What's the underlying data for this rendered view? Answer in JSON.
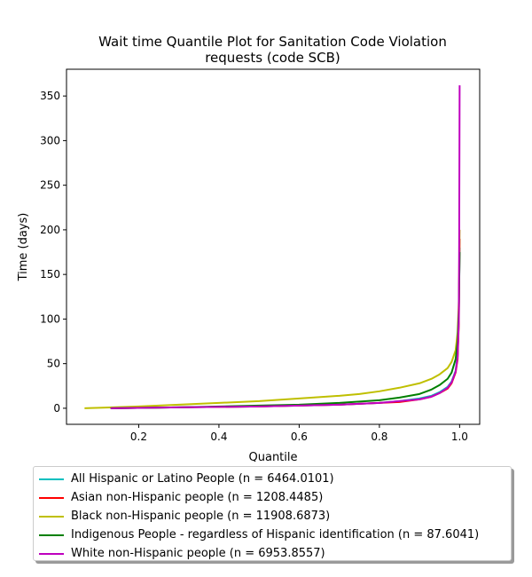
{
  "chart_data": {
    "type": "line",
    "title_lines": [
      "Wait time Quantile Plot for Sanitation Code Violation",
      "requests (code SCB)"
    ],
    "xlabel": "Quantile",
    "ylabel": "Time (days)",
    "xlim": [
      0.02,
      1.05
    ],
    "ylim": [
      -18,
      380
    ],
    "xticks": [
      0.2,
      0.4,
      0.6,
      0.8,
      1.0
    ],
    "xtick_labels": [
      "0.2",
      "0.4",
      "0.6",
      "0.8",
      "1.0"
    ],
    "yticks": [
      0,
      50,
      100,
      150,
      200,
      250,
      300,
      350
    ],
    "ytick_labels": [
      "0",
      "50",
      "100",
      "150",
      "200",
      "250",
      "300",
      "350"
    ],
    "grid": false,
    "legend_position": "below",
    "series": [
      {
        "name": "All Hispanic or Latino People (n = 6464.0101)",
        "color": "#00bfbf",
        "points": [
          [
            0.13,
            0
          ],
          [
            0.3,
            1
          ],
          [
            0.5,
            2
          ],
          [
            0.6,
            3
          ],
          [
            0.7,
            4
          ],
          [
            0.8,
            6
          ],
          [
            0.85,
            8
          ],
          [
            0.9,
            11
          ],
          [
            0.93,
            14
          ],
          [
            0.95,
            18
          ],
          [
            0.97,
            24
          ],
          [
            0.98,
            30
          ],
          [
            0.99,
            42
          ],
          [
            0.995,
            60
          ],
          [
            0.998,
            100
          ],
          [
            1.0,
            180
          ]
        ]
      },
      {
        "name": "Asian non-Hispanic people (n = 1208.4485)",
        "color": "#ff0000",
        "points": [
          [
            0.13,
            0
          ],
          [
            0.3,
            1
          ],
          [
            0.5,
            2
          ],
          [
            0.6,
            3
          ],
          [
            0.7,
            4
          ],
          [
            0.8,
            6
          ],
          [
            0.85,
            7
          ],
          [
            0.9,
            10
          ],
          [
            0.93,
            13
          ],
          [
            0.95,
            17
          ],
          [
            0.97,
            22
          ],
          [
            0.98,
            28
          ],
          [
            0.99,
            40
          ],
          [
            0.995,
            55
          ],
          [
            0.998,
            95
          ],
          [
            1.0,
            190
          ]
        ]
      },
      {
        "name": "Black non-Hispanic people (n = 11908.6873)",
        "color": "#bfbf00",
        "points": [
          [
            0.065,
            0
          ],
          [
            0.2,
            2
          ],
          [
            0.3,
            4
          ],
          [
            0.4,
            6
          ],
          [
            0.5,
            8
          ],
          [
            0.6,
            11
          ],
          [
            0.7,
            14
          ],
          [
            0.75,
            16
          ],
          [
            0.8,
            19
          ],
          [
            0.85,
            23
          ],
          [
            0.9,
            28
          ],
          [
            0.93,
            33
          ],
          [
            0.95,
            38
          ],
          [
            0.97,
            45
          ],
          [
            0.98,
            52
          ],
          [
            0.99,
            65
          ],
          [
            0.995,
            85
          ],
          [
            0.998,
            120
          ],
          [
            1.0,
            200
          ]
        ]
      },
      {
        "name": "Indigenous People - regardless of Hispanic identification (n = 87.6041)",
        "color": "#008000",
        "points": [
          [
            0.13,
            0
          ],
          [
            0.3,
            1
          ],
          [
            0.5,
            3
          ],
          [
            0.6,
            4
          ],
          [
            0.7,
            6
          ],
          [
            0.8,
            9
          ],
          [
            0.85,
            12
          ],
          [
            0.9,
            16
          ],
          [
            0.93,
            21
          ],
          [
            0.95,
            26
          ],
          [
            0.97,
            33
          ],
          [
            0.98,
            40
          ],
          [
            0.99,
            55
          ],
          [
            0.995,
            75
          ],
          [
            0.998,
            110
          ],
          [
            1.0,
            175
          ]
        ]
      },
      {
        "name": "White non-Hispanic people (n = 6953.8557)",
        "color": "#bf00bf",
        "points": [
          [
            0.13,
            0
          ],
          [
            0.3,
            1
          ],
          [
            0.5,
            2
          ],
          [
            0.6,
            3
          ],
          [
            0.7,
            4
          ],
          [
            0.8,
            6
          ],
          [
            0.85,
            8
          ],
          [
            0.9,
            10
          ],
          [
            0.93,
            13
          ],
          [
            0.95,
            17
          ],
          [
            0.97,
            23
          ],
          [
            0.98,
            29
          ],
          [
            0.99,
            41
          ],
          [
            0.995,
            58
          ],
          [
            0.998,
            100
          ],
          [
            0.999,
            200
          ],
          [
            1.0,
            362
          ]
        ]
      }
    ]
  }
}
